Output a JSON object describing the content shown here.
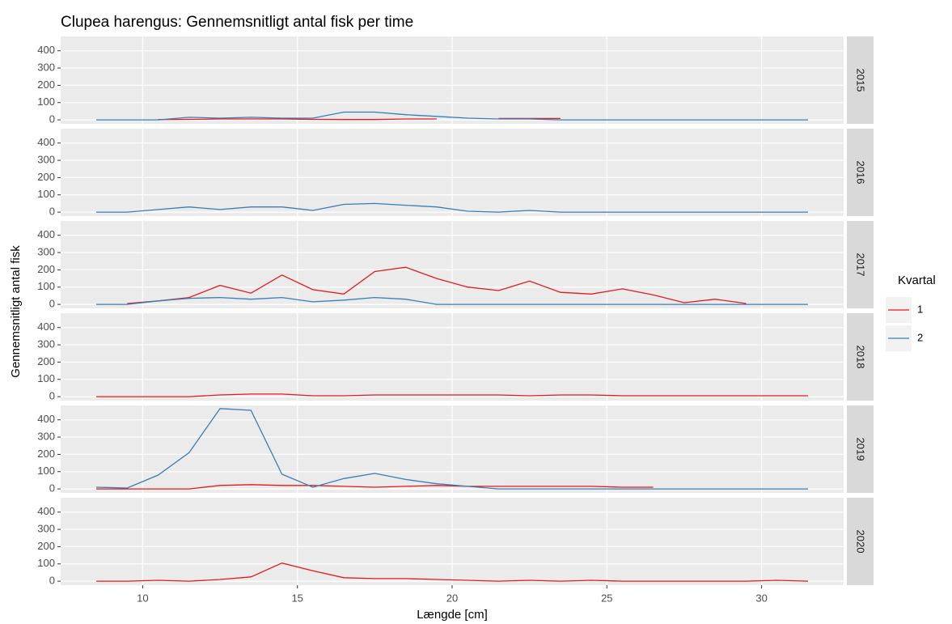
{
  "chart_data": {
    "type": "line",
    "title": "Clupea harengus: Gennemsnitligt antal fisk per time",
    "x_label": "Længde [cm]",
    "y_label": "Gennemsnitligt antal fisk",
    "legend_title": "Kvartal",
    "facets": [
      "2015",
      "2016",
      "2017",
      "2018",
      "2019",
      "2020"
    ],
    "x": [
      8.5,
      9.5,
      10.5,
      11.5,
      12.5,
      13.5,
      14.5,
      15.5,
      16.5,
      17.5,
      18.5,
      19.5,
      20.5,
      21.5,
      22.5,
      23.5,
      24.5,
      25.5,
      26.5,
      27.5,
      28.5,
      29.5,
      30.5,
      31.5
    ],
    "xlim": [
      7.35,
      32.65
    ],
    "xticks": [
      10,
      15,
      20,
      25,
      30
    ],
    "ylim": [
      -23,
      483
    ],
    "yticks": [
      0,
      100,
      200,
      300,
      400
    ],
    "grid": true,
    "series": [
      {
        "name": "1",
        "color": "#e41a1c",
        "values": [
          [
            null,
            null,
            2,
            3,
            5,
            5,
            5,
            3,
            2,
            2,
            5,
            5,
            null,
            8,
            8,
            8,
            null,
            null,
            null,
            null,
            null,
            null,
            null,
            null
          ],
          [
            null,
            null,
            null,
            null,
            null,
            null,
            null,
            null,
            null,
            null,
            null,
            null,
            null,
            null,
            null,
            null,
            null,
            null,
            null,
            null,
            null,
            null,
            null,
            null
          ],
          [
            null,
            5,
            20,
            40,
            110,
            65,
            170,
            85,
            60,
            190,
            215,
            150,
            100,
            80,
            135,
            70,
            60,
            90,
            55,
            10,
            30,
            5,
            null,
            null
          ],
          [
            0,
            0,
            0,
            0,
            10,
            15,
            15,
            5,
            5,
            10,
            10,
            10,
            10,
            10,
            5,
            10,
            10,
            5,
            5,
            5,
            5,
            5,
            5,
            5
          ],
          [
            0,
            0,
            0,
            0,
            20,
            25,
            20,
            20,
            15,
            10,
            15,
            20,
            15,
            15,
            15,
            15,
            15,
            10,
            10,
            null,
            null,
            null,
            null,
            null
          ],
          [
            0,
            0,
            5,
            0,
            10,
            25,
            105,
            60,
            20,
            15,
            15,
            10,
            5,
            0,
            5,
            0,
            5,
            0,
            0,
            0,
            0,
            0,
            5,
            0
          ]
        ]
      },
      {
        "name": "2",
        "color": "#377eb8",
        "values": [
          [
            0,
            0,
            0,
            15,
            10,
            15,
            10,
            10,
            45,
            45,
            30,
            20,
            10,
            5,
            5,
            0,
            0,
            0,
            0,
            0,
            0,
            0,
            0,
            0
          ],
          [
            0,
            0,
            15,
            30,
            15,
            30,
            30,
            10,
            45,
            50,
            40,
            30,
            5,
            0,
            10,
            0,
            0,
            0,
            0,
            0,
            0,
            0,
            0,
            0
          ],
          [
            0,
            0,
            20,
            35,
            40,
            30,
            40,
            15,
            25,
            40,
            30,
            0,
            0,
            0,
            0,
            0,
            0,
            0,
            0,
            0,
            0,
            0,
            0,
            0
          ],
          [
            null,
            null,
            null,
            null,
            null,
            null,
            null,
            null,
            null,
            null,
            null,
            null,
            null,
            null,
            null,
            null,
            null,
            null,
            null,
            null,
            null,
            null,
            null,
            null
          ],
          [
            10,
            5,
            80,
            210,
            465,
            455,
            85,
            10,
            60,
            90,
            55,
            30,
            15,
            0,
            0,
            0,
            0,
            0,
            0,
            0,
            0,
            0,
            0,
            0
          ],
          [
            null,
            null,
            null,
            null,
            null,
            null,
            null,
            null,
            null,
            null,
            null,
            null,
            null,
            null,
            null,
            null,
            null,
            null,
            null,
            null,
            null,
            null,
            null,
            null
          ]
        ]
      }
    ]
  }
}
